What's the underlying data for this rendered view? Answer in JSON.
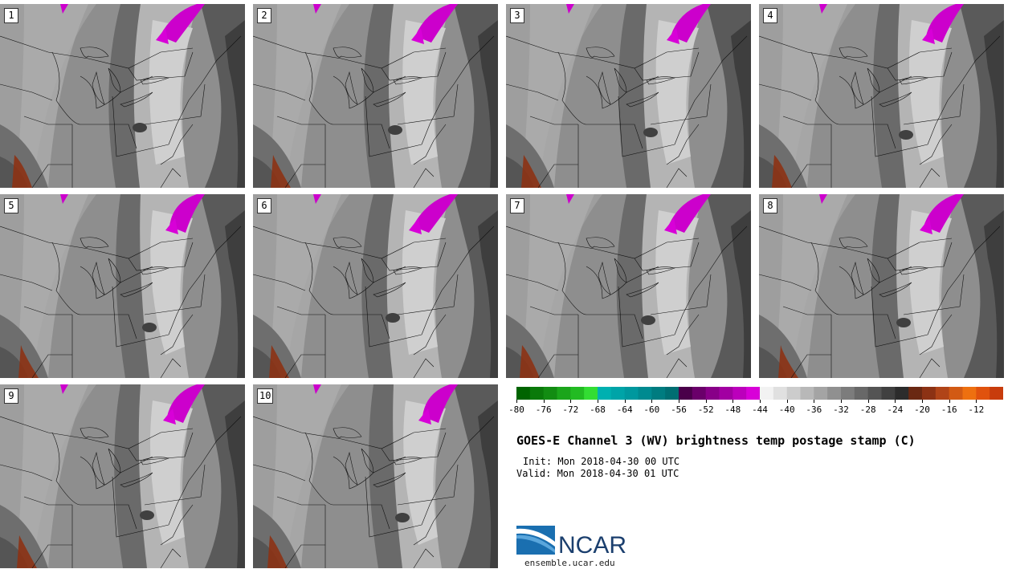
{
  "panels": [
    "1",
    "2",
    "3",
    "4",
    "5",
    "6",
    "7",
    "8",
    "9",
    "10"
  ],
  "colorbar": {
    "colors": [
      "#006400",
      "#0a7a0a",
      "#128c12",
      "#1ba51b",
      "#22bb22",
      "#33dd33",
      "#00b0b0",
      "#00a4a8",
      "#00989e",
      "#008a90",
      "#007c80",
      "#006e72",
      "#4a004a",
      "#6a006a",
      "#880088",
      "#a200a2",
      "#bc00bc",
      "#d800d8",
      "#f2f2f2",
      "#e0e0e0",
      "#cccccc",
      "#b8b8b8",
      "#a4a4a4",
      "#909090",
      "#7c7c7c",
      "#686868",
      "#545454",
      "#404040",
      "#2c2c2c",
      "#6a2812",
      "#8c3214",
      "#b04418",
      "#d25a14",
      "#ee7010",
      "#e0520e",
      "#c83c0c"
    ],
    "ticks": [
      "-80",
      "-76",
      "-72",
      "-68",
      "-64",
      "-60",
      "-56",
      "-52",
      "-48",
      "-44",
      "-40",
      "-36",
      "-32",
      "-28",
      "-24",
      "-20",
      "-16",
      "-12"
    ]
  },
  "title": "GOES-E Channel 3 (WV) brightness temp postage stamp (C)",
  "init": "Init: Mon 2018-04-30 00 UTC",
  "valid": "Valid: Mon 2018-04-30 01 UTC",
  "logo_text": "NCAR",
  "site": "ensemble.ucar.edu"
}
